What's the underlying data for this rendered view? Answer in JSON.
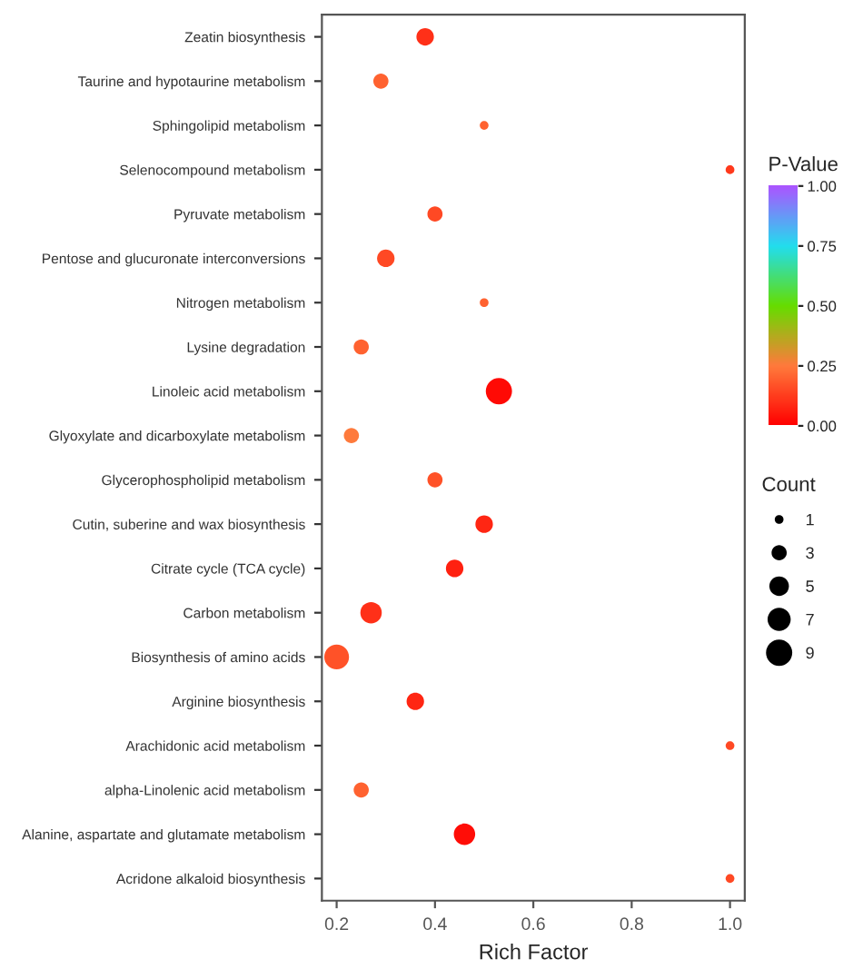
{
  "chart_data": {
    "type": "bubble",
    "orientation": "horizontal",
    "xlabel": "Rich Factor",
    "clabel": "P-Value",
    "legend_title": "Count",
    "categories": [
      "Zeatin biosynthesis",
      "Taurine and hypotaurine metabolism",
      "Sphingolipid metabolism",
      "Selenocompound metabolism",
      "Pyruvate metabolism",
      "Pentose and glucuronate interconversions",
      "Nitrogen metabolism",
      "Lysine degradation",
      "Linoleic acid metabolism",
      "Glyoxylate and dicarboxylate metabolism",
      "Glycerophospholipid metabolism",
      "Cutin, suberine and wax biosynthesis",
      "Citrate cycle (TCA cycle)",
      "Carbon metabolism",
      "Biosynthesis of amino acids",
      "Arginine biosynthesis",
      "Arachidonic acid metabolism",
      "alpha-Linolenic acid metabolism",
      "Alanine, aspartate and glutamate metabolism",
      "Acridone alkaloid biosynthesis"
    ],
    "values": [
      0.38,
      0.29,
      0.5,
      1.0,
      0.4,
      0.3,
      0.5,
      0.25,
      0.53,
      0.23,
      0.4,
      0.5,
      0.44,
      0.27,
      0.2,
      0.36,
      1.0,
      0.25,
      0.46,
      1.0
    ],
    "sizes": [
      4,
      3,
      1,
      1,
      3,
      4,
      1,
      3,
      9,
      3,
      3,
      4,
      4,
      6,
      8,
      4,
      1,
      3,
      6,
      1
    ],
    "cvalues": [
      0.1,
      0.2,
      0.2,
      0.12,
      0.15,
      0.15,
      0.2,
      0.2,
      0.02,
      0.25,
      0.17,
      0.08,
      0.07,
      0.1,
      0.17,
      0.08,
      0.15,
      0.2,
      0.03,
      0.15
    ],
    "size_legend": [
      1,
      3,
      5,
      7,
      9
    ],
    "clim": [
      0,
      1
    ],
    "cticks": [
      {
        "value": 0,
        "label": "0.00"
      },
      {
        "value": 0.25,
        "label": "0.25"
      },
      {
        "value": 0.5,
        "label": "0.50"
      },
      {
        "value": 0.75,
        "label": "0.75"
      },
      {
        "value": 1,
        "label": "1.00"
      }
    ],
    "xlim": [
      0.17,
      1.03
    ],
    "xticks": [
      {
        "value": 0.2,
        "label": "0.2"
      },
      {
        "value": 0.4,
        "label": "0.4"
      },
      {
        "value": 0.6,
        "label": "0.6"
      },
      {
        "value": 0.8,
        "label": "0.8"
      },
      {
        "value": 1.0,
        "label": "1.0"
      }
    ],
    "grid": false
  }
}
